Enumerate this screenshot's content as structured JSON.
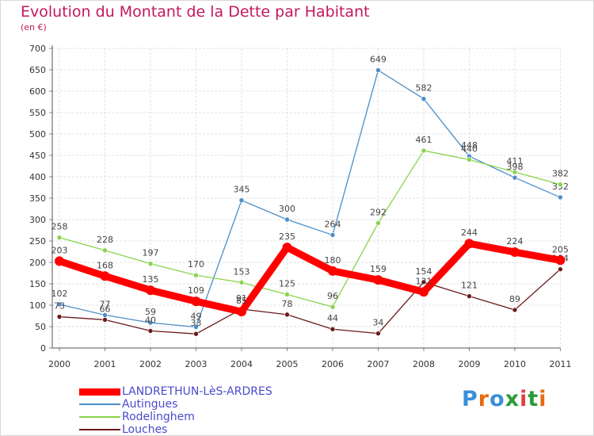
{
  "header": {
    "title": "Evolution du Montant de la Dette par Habitant",
    "subtitle": "(en €)"
  },
  "logo": {
    "text": "Proxiti",
    "colors": [
      "#3a8fd8",
      "#e86a10",
      "#3a8fd8",
      "#2a9a3a",
      "#e04040",
      "#2a9a3a",
      "#e86a10"
    ]
  },
  "chart_data": {
    "type": "line",
    "x": [
      "2000",
      "2001",
      "2002",
      "2003",
      "2004",
      "2005",
      "2006",
      "2007",
      "2008",
      "2009",
      "2010",
      "2011"
    ],
    "ylim": [
      0,
      700
    ],
    "yticks": [
      0,
      50,
      100,
      150,
      200,
      250,
      300,
      350,
      400,
      450,
      500,
      550,
      600,
      650,
      700
    ],
    "grid": true,
    "legend_position": "bottom-left",
    "series": [
      {
        "name": "Autingues",
        "color": "#4a8ec8",
        "values": [
          102,
          77,
          59,
          49,
          345,
          300,
          264,
          649,
          582,
          448,
          398,
          352
        ]
      },
      {
        "name": "Rodelinghem",
        "color": "#88d44a",
        "values": [
          258,
          228,
          197,
          170,
          153,
          125,
          96,
          292,
          461,
          440,
          411,
          382
        ]
      },
      {
        "name": "Louches",
        "color": "#6b1a1a",
        "values": [
          73,
          66,
          40,
          33,
          91,
          78,
          44,
          34,
          154,
          121,
          89,
          184
        ]
      },
      {
        "name": "LANDRETHUN-LèS-ARDRES",
        "color": "#ff0000",
        "values": [
          203,
          168,
          135,
          109,
          85,
          235,
          180,
          159,
          131,
          244,
          224,
          205
        ]
      }
    ],
    "legend_order": [
      "LANDRETHUN-LèS-ARDRES",
      "Autingues",
      "Rodelinghem",
      "Louches"
    ]
  }
}
